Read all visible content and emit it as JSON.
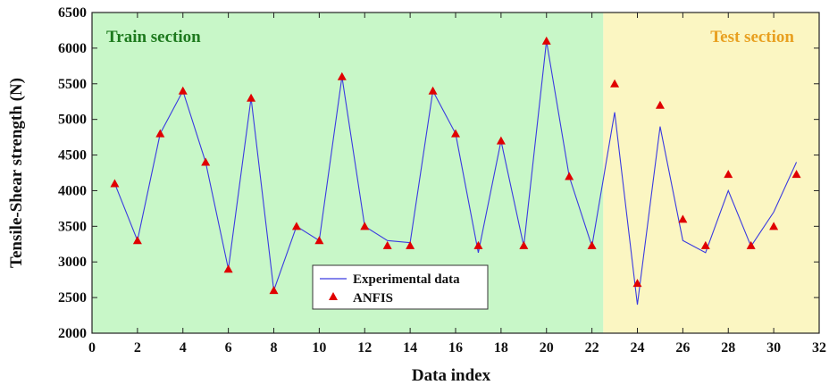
{
  "chart_data": {
    "type": "line",
    "title": "",
    "xlabel": "Data index",
    "ylabel": "Tensile-Shear strength (N)",
    "xlim": [
      0,
      32
    ],
    "ylim": [
      2000,
      6500
    ],
    "xticks": [
      0,
      2,
      4,
      6,
      8,
      10,
      12,
      14,
      16,
      18,
      20,
      22,
      24,
      26,
      28,
      30,
      32
    ],
    "yticks": [
      2000,
      2500,
      3000,
      3500,
      4000,
      4500,
      5000,
      5500,
      6000,
      6500
    ],
    "regions": [
      {
        "label": "Train section",
        "x_start": 0,
        "x_end": 22.5,
        "color": "#c8f7c8",
        "label_color": "#1e7a1e"
      },
      {
        "label": "Test section",
        "x_start": 22.5,
        "x_end": 32,
        "color": "#fbf6c2",
        "label_color": "#e8a020"
      }
    ],
    "legend": {
      "position": "bottom-center"
    },
    "series": [
      {
        "name": "Experimental data",
        "style": "line",
        "color": "#3a3ae0",
        "x": [
          1,
          2,
          3,
          4,
          5,
          6,
          7,
          8,
          9,
          10,
          11,
          12,
          13,
          14,
          15,
          16,
          17,
          18,
          19,
          20,
          21,
          22,
          23,
          24,
          25,
          26,
          27,
          28,
          29,
          30,
          31
        ],
        "values": [
          4100,
          3300,
          4800,
          5400,
          4400,
          2900,
          5300,
          2600,
          3500,
          3300,
          5600,
          3500,
          3300,
          3270,
          5400,
          4800,
          3130,
          4700,
          3220,
          6100,
          4200,
          3220,
          5100,
          2400,
          4900,
          3300,
          3130,
          4000,
          3220,
          3700,
          4400
        ]
      },
      {
        "name": "ANFIS",
        "style": "marker",
        "marker": "triangle",
        "color": "#e00000",
        "x": [
          1,
          2,
          3,
          4,
          5,
          6,
          7,
          8,
          9,
          10,
          11,
          12,
          13,
          14,
          15,
          16,
          17,
          18,
          19,
          20,
          21,
          22,
          23,
          24,
          25,
          26,
          27,
          28,
          29,
          30,
          31
        ],
        "values": [
          4100,
          3300,
          4800,
          5400,
          4400,
          2900,
          5300,
          2600,
          3500,
          3300,
          5600,
          3500,
          3230,
          3230,
          5400,
          4800,
          3230,
          4700,
          3230,
          6100,
          4200,
          3230,
          5500,
          2700,
          5200,
          3600,
          3230,
          4230,
          3230,
          3500,
          4230
        ]
      }
    ]
  }
}
